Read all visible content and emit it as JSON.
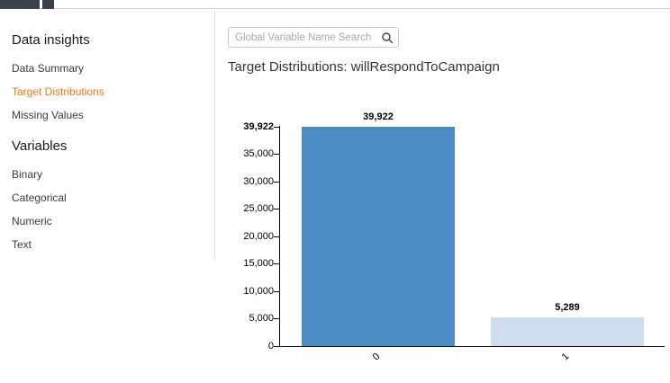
{
  "sidebar": {
    "insights": {
      "heading": "Data insights",
      "items": [
        {
          "label": "Data Summary",
          "active": false
        },
        {
          "label": "Target Distributions",
          "active": true
        },
        {
          "label": "Missing Values",
          "active": false
        }
      ]
    },
    "variables": {
      "heading": "Variables",
      "items": [
        {
          "label": "Binary"
        },
        {
          "label": "Categorical"
        },
        {
          "label": "Numeric"
        },
        {
          "label": "Text"
        }
      ]
    }
  },
  "search": {
    "placeholder": "Global Variable Name Search",
    "icon": "search-icon"
  },
  "main": {
    "title": "Target Distributions: willRespondToCampaign"
  },
  "chart_data": {
    "type": "bar",
    "title": "Target Distributions: willRespondToCampaign",
    "categories": [
      "0",
      "1"
    ],
    "values": [
      39922,
      5289
    ],
    "value_labels": [
      "39,922",
      "5,289"
    ],
    "bar_colors": [
      "#4a8ec5",
      "#cedcf0"
    ],
    "ylim": [
      0,
      39922
    ],
    "y_ticks": [
      {
        "value": 0,
        "label": "0"
      },
      {
        "value": 5000,
        "label": "5,000"
      },
      {
        "value": 10000,
        "label": "10,000"
      },
      {
        "value": 15000,
        "label": "15,000"
      },
      {
        "value": 20000,
        "label": "20,000"
      },
      {
        "value": 25000,
        "label": "25,000"
      },
      {
        "value": 30000,
        "label": "30,000"
      },
      {
        "value": 35000,
        "label": "35,000"
      },
      {
        "value": 39922,
        "label": "39,922",
        "bold": true
      }
    ],
    "xlabel": "",
    "ylabel": "",
    "grid": false,
    "legend": false
  },
  "colors": {
    "accent": "#e47911",
    "bar_primary": "#4a8ec5",
    "bar_secondary": "#cedcf0",
    "axis": "#000000"
  }
}
